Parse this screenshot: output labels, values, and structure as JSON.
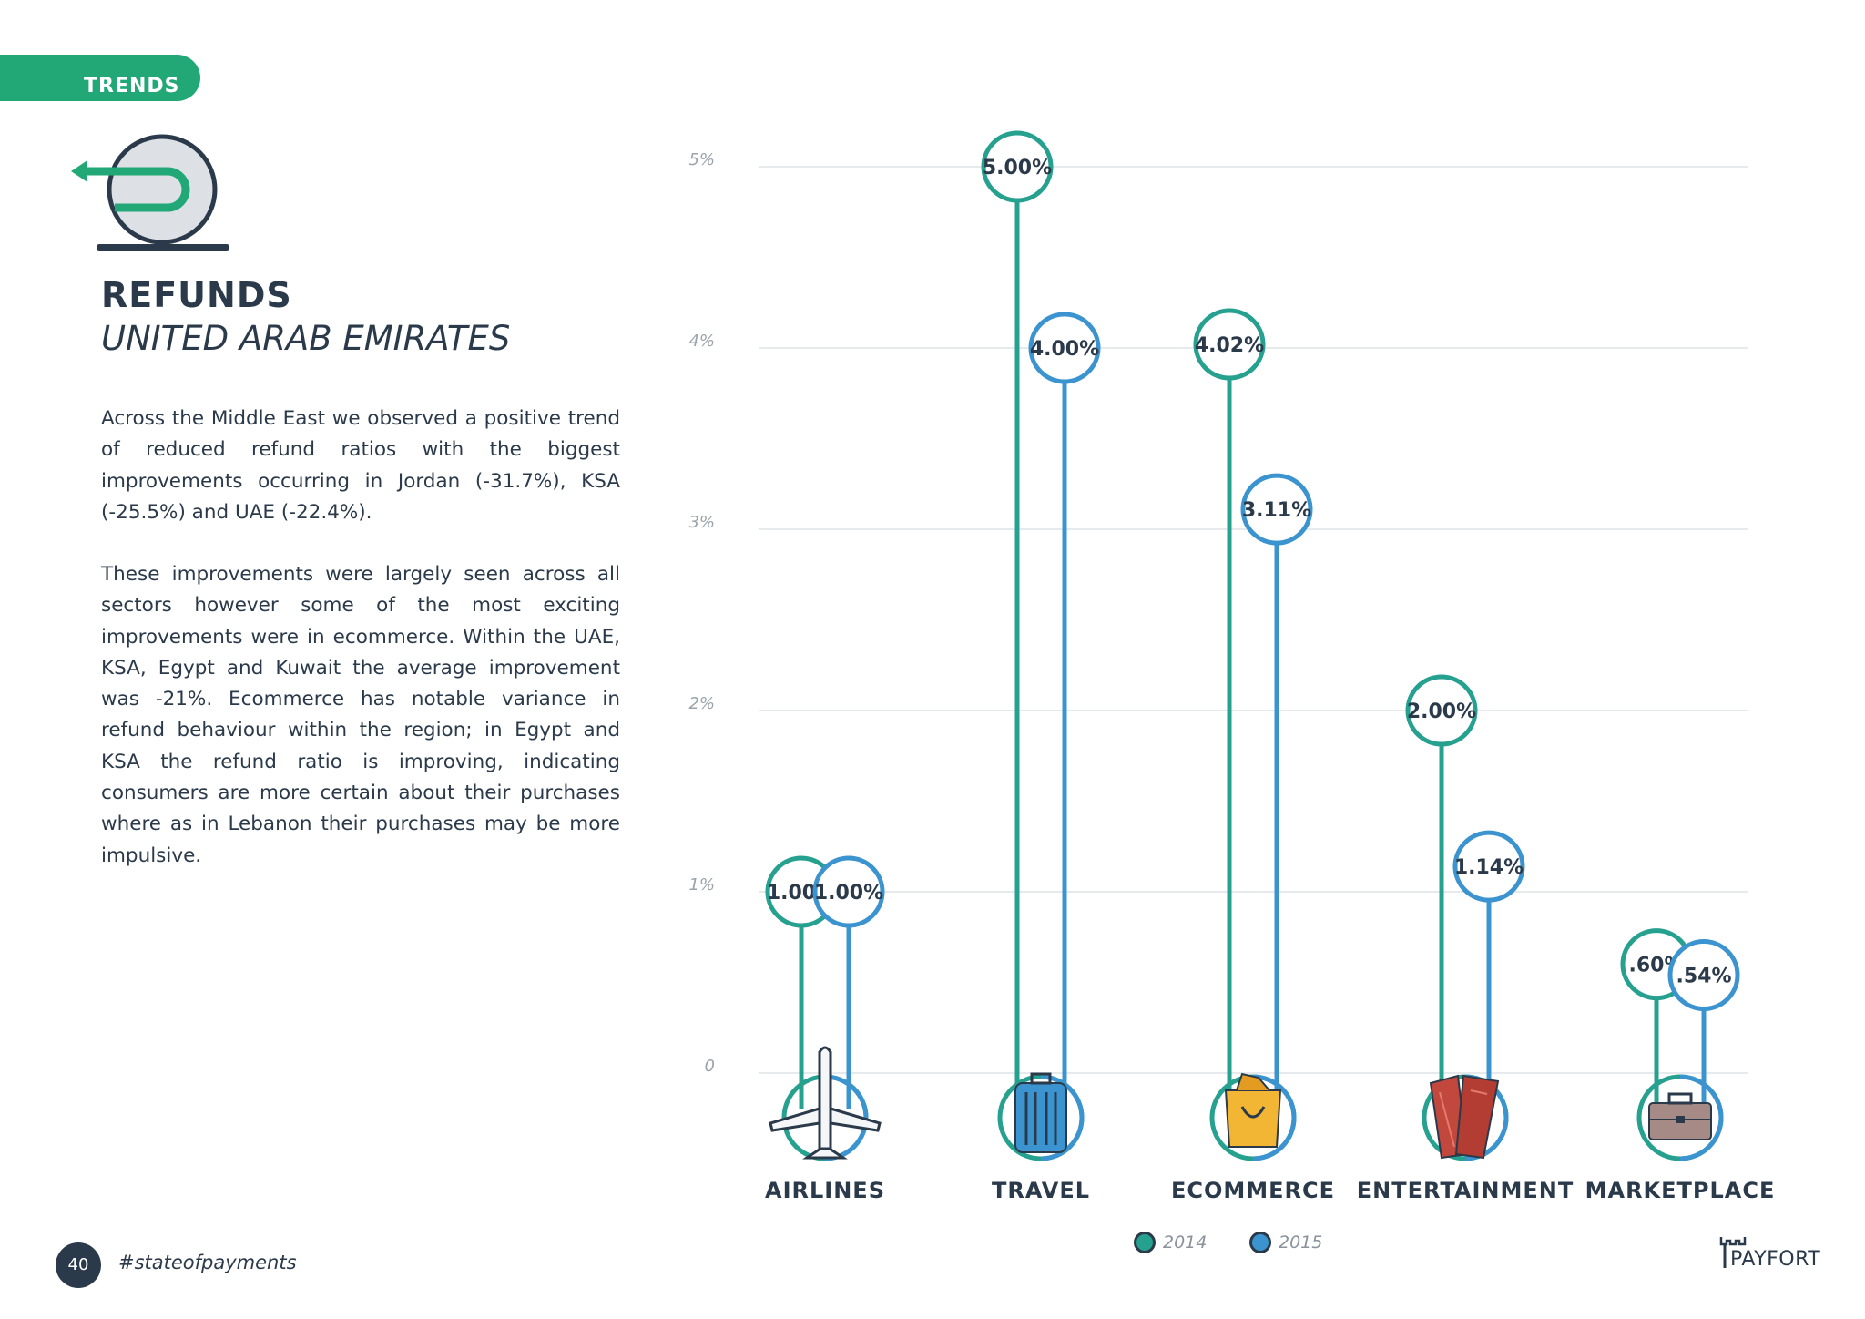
{
  "header": {
    "section_tab": "TRENDS"
  },
  "content": {
    "title": "REFUNDS",
    "subtitle": "UNITED ARAB EMIRATES",
    "paragraphs": [
      "Across the Middle East we observed a positive trend of reduced refund ratios with the biggest improvements occurring in Jordan (-31.7%), KSA (-25.5%) and UAE (-22.4%).",
      "These improvements were largely seen across all sectors however some of the most exciting improvements were in ecommerce. Within the UAE, KSA, Egypt and Kuwait the average improvement was -21%. Ecommerce has notable variance in refund behaviour within the region; in Egypt and KSA the refund ratio is improving, indicating consumers are more certain about their purchases where as in Lebanon their purchases may be more impulsive."
    ]
  },
  "footer": {
    "page_number": "40",
    "hashtag": "#stateofpayments",
    "brand": "PAYFORT"
  },
  "colors": {
    "accent_green": "#22a876",
    "series_2014": "#26a08f",
    "series_2015": "#3b94cf",
    "text_dark": "#2b3a4a"
  },
  "chart_data": {
    "type": "lollipop",
    "categories": [
      "AIRLINES",
      "TRAVEL",
      "ECOMMERCE",
      "ENTERTAINMENT",
      "MARKETPLACE"
    ],
    "category_icons": [
      "airplane-icon",
      "luggage-icon",
      "shopping-bag-icon",
      "tickets-icon",
      "briefcase-icon"
    ],
    "series": [
      {
        "name": "2014",
        "values": [
          1.0,
          5.0,
          4.02,
          2.0,
          0.6
        ],
        "labels": [
          "1.00%",
          "5.00%",
          "4.02%",
          "2.00%",
          ".60%"
        ]
      },
      {
        "name": "2015",
        "values": [
          1.0,
          4.0,
          3.11,
          1.14,
          0.54
        ],
        "labels": [
          "1.00%",
          "4.00%",
          "3.11%",
          "1.14%",
          ".54%"
        ]
      }
    ],
    "yticks": [
      0,
      1,
      2,
      3,
      4,
      5
    ],
    "ytick_labels": [
      "0",
      "1%",
      "2%",
      "3%",
      "4%",
      "5%"
    ],
    "ylim": [
      0,
      5
    ],
    "grid": true,
    "legend_position": "bottom-center"
  }
}
